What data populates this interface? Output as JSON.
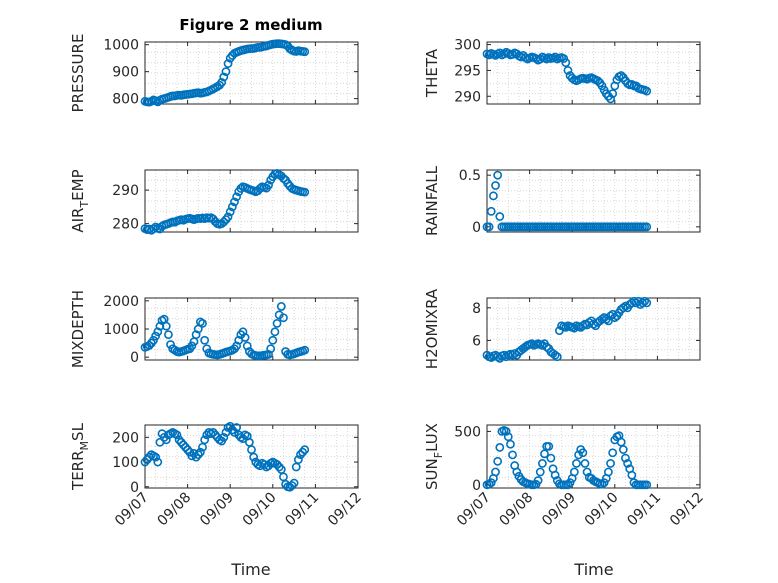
{
  "figure": {
    "title": "Figure 2 medium",
    "marker_color": "#0072BD",
    "x_tick_labels": [
      "09/07",
      "09/08",
      "09/09",
      "09/10",
      "09/11",
      "09/12"
    ],
    "x_label": "Time"
  },
  "chart_data": [
    {
      "type": "scatter",
      "title": "Figure 2 medium",
      "ylabel": "PRESSURE",
      "ylim": [
        780,
        1010
      ],
      "yticks": [
        800,
        900,
        1000
      ],
      "xlim": [
        0,
        5
      ],
      "grid": true,
      "x": [
        0.0,
        0.05,
        0.1,
        0.15,
        0.2,
        0.25,
        0.3,
        0.35,
        0.4,
        0.45,
        0.5,
        0.55,
        0.6,
        0.65,
        0.7,
        0.75,
        0.8,
        0.85,
        0.9,
        0.95,
        1.0,
        1.05,
        1.1,
        1.15,
        1.2,
        1.25,
        1.3,
        1.35,
        1.4,
        1.45,
        1.5,
        1.55,
        1.6,
        1.65,
        1.7,
        1.75,
        1.8,
        1.85,
        1.9,
        1.95,
        2.0,
        2.05,
        2.1,
        2.15,
        2.2,
        2.25,
        2.3,
        2.35,
        2.4,
        2.45,
        2.5,
        2.55,
        2.6,
        2.65,
        2.7,
        2.75,
        2.8,
        2.85,
        2.9,
        2.95,
        3.0,
        3.05,
        3.1,
        3.15,
        3.2,
        3.25,
        3.3,
        3.35,
        3.4,
        3.45,
        3.5,
        3.55,
        3.6,
        3.65,
        3.7,
        3.75
      ],
      "y": [
        790,
        788,
        787,
        790,
        795,
        792,
        788,
        794,
        798,
        800,
        802,
        805,
        808,
        810,
        810,
        812,
        813,
        812,
        814,
        815,
        816,
        817,
        818,
        820,
        821,
        822,
        820,
        821,
        823,
        825,
        828,
        832,
        836,
        840,
        845,
        850,
        860,
        880,
        900,
        930,
        950,
        960,
        968,
        972,
        975,
        978,
        980,
        982,
        984,
        985,
        986,
        986,
        988,
        990,
        990,
        992,
        994,
        995,
        998,
        1000,
        1002,
        1003,
        1004,
        1004,
        1003,
        1002,
        1000,
        995,
        985,
        980,
        976,
        975,
        978,
        976,
        975,
        974
      ]
    },
    {
      "type": "scatter",
      "ylabel": "THETA",
      "ylim": [
        288.5,
        300.5
      ],
      "yticks": [
        290,
        295,
        300
      ],
      "xlim": [
        0,
        5
      ],
      "grid": true,
      "x": [
        0.0,
        0.05,
        0.1,
        0.15,
        0.2,
        0.25,
        0.3,
        0.35,
        0.4,
        0.45,
        0.5,
        0.55,
        0.6,
        0.65,
        0.7,
        0.75,
        0.8,
        0.85,
        0.9,
        0.95,
        1.0,
        1.05,
        1.1,
        1.15,
        1.2,
        1.25,
        1.3,
        1.35,
        1.4,
        1.45,
        1.5,
        1.55,
        1.6,
        1.65,
        1.7,
        1.75,
        1.8,
        1.85,
        1.9,
        1.95,
        2.0,
        2.05,
        2.1,
        2.15,
        2.2,
        2.25,
        2.3,
        2.35,
        2.4,
        2.45,
        2.5,
        2.55,
        2.6,
        2.65,
        2.7,
        2.75,
        2.8,
        2.85,
        2.9,
        2.95,
        3.0,
        3.05,
        3.1,
        3.15,
        3.2,
        3.25,
        3.3,
        3.35,
        3.4,
        3.45,
        3.5,
        3.55,
        3.6,
        3.65,
        3.7,
        3.75
      ],
      "y": [
        298.2,
        298.0,
        298.3,
        298.1,
        297.9,
        298.2,
        298.4,
        298.0,
        298.2,
        298.5,
        298.3,
        298.0,
        298.1,
        298.4,
        298.2,
        297.8,
        297.6,
        297.9,
        297.5,
        297.2,
        297.4,
        297.6,
        297.5,
        297.3,
        297.0,
        297.2,
        297.6,
        297.4,
        297.2,
        297.5,
        297.3,
        297.4,
        297.6,
        297.2,
        297.4,
        297.5,
        297.3,
        296.5,
        295.0,
        294.0,
        293.5,
        293.2,
        293.0,
        293.2,
        293.4,
        293.5,
        293.4,
        293.3,
        293.5,
        293.6,
        293.4,
        293.2,
        293.0,
        292.6,
        292.0,
        291.2,
        290.5,
        290.0,
        289.5,
        290.5,
        292.0,
        293.2,
        293.8,
        294.0,
        293.6,
        293.0,
        292.5,
        292.2,
        292.3,
        292.0,
        292.0,
        291.6,
        291.4,
        291.3,
        291.2,
        291.0
      ]
    },
    {
      "type": "scatter",
      "ylabel": "AIR_TEMP",
      "ylim": [
        277.5,
        296
      ],
      "yticks": [
        280,
        290
      ],
      "xlim": [
        0,
        5
      ],
      "grid": true,
      "x": [
        0.0,
        0.05,
        0.1,
        0.15,
        0.2,
        0.25,
        0.3,
        0.35,
        0.4,
        0.45,
        0.5,
        0.55,
        0.6,
        0.65,
        0.7,
        0.75,
        0.8,
        0.85,
        0.9,
        0.95,
        1.0,
        1.05,
        1.1,
        1.15,
        1.2,
        1.25,
        1.3,
        1.35,
        1.4,
        1.45,
        1.5,
        1.55,
        1.6,
        1.65,
        1.7,
        1.75,
        1.8,
        1.85,
        1.9,
        1.95,
        2.0,
        2.05,
        2.1,
        2.15,
        2.2,
        2.25,
        2.3,
        2.35,
        2.4,
        2.45,
        2.5,
        2.55,
        2.6,
        2.65,
        2.7,
        2.75,
        2.8,
        2.85,
        2.9,
        2.95,
        3.0,
        3.05,
        3.1,
        3.15,
        3.2,
        3.25,
        3.3,
        3.35,
        3.4,
        3.45,
        3.5,
        3.55,
        3.6,
        3.65,
        3.7,
        3.75
      ],
      "y": [
        278.5,
        278.2,
        278.4,
        278.0,
        278.5,
        279.0,
        278.6,
        278.4,
        279.2,
        279.6,
        279.8,
        280.0,
        280.3,
        280.5,
        280.4,
        280.8,
        281.0,
        281.2,
        281.0,
        281.3,
        281.5,
        281.6,
        281.4,
        281.2,
        281.4,
        281.6,
        281.5,
        281.7,
        281.5,
        281.8,
        281.6,
        281.8,
        281.4,
        280.6,
        280.0,
        279.8,
        280.0,
        280.5,
        281.2,
        282.0,
        283.5,
        285.0,
        286.5,
        288.0,
        289.5,
        290.5,
        291.0,
        290.8,
        290.5,
        290.2,
        290.0,
        289.8,
        289.5,
        289.8,
        290.5,
        291.0,
        290.8,
        290.6,
        291.5,
        293.0,
        294.0,
        294.8,
        295.0,
        294.6,
        294.2,
        293.5,
        293.0,
        292.0,
        291.2,
        290.5,
        290.2,
        290.0,
        289.8,
        289.6,
        289.5,
        289.4
      ]
    },
    {
      "type": "scatter",
      "ylabel": "RAINFALL",
      "ylim": [
        -0.05,
        0.55
      ],
      "yticks": [
        0,
        0.5
      ],
      "xlim": [
        0,
        5
      ],
      "grid": true,
      "x": [
        0.0,
        0.05,
        0.1,
        0.15,
        0.2,
        0.25,
        0.3,
        0.35,
        0.4,
        0.45,
        0.5,
        0.55,
        0.6,
        0.65,
        0.7,
        0.75,
        0.8,
        0.85,
        0.9,
        0.95,
        1.0,
        1.05,
        1.1,
        1.15,
        1.2,
        1.25,
        1.3,
        1.35,
        1.4,
        1.45,
        1.5,
        1.55,
        1.6,
        1.65,
        1.7,
        1.75,
        1.8,
        1.85,
        1.9,
        1.95,
        2.0,
        2.05,
        2.1,
        2.15,
        2.2,
        2.25,
        2.3,
        2.35,
        2.4,
        2.45,
        2.5,
        2.55,
        2.6,
        2.65,
        2.7,
        2.75,
        2.8,
        2.85,
        2.9,
        2.95,
        3.0,
        3.05,
        3.1,
        3.15,
        3.2,
        3.25,
        3.3,
        3.35,
        3.4,
        3.45,
        3.5,
        3.55,
        3.6,
        3.65,
        3.7,
        3.75
      ],
      "y": [
        0,
        0,
        0.15,
        0.3,
        0.4,
        0.5,
        0.1,
        0,
        0,
        0,
        0,
        0,
        0,
        0,
        0,
        0,
        0,
        0,
        0,
        0,
        0,
        0,
        0,
        0,
        0,
        0,
        0,
        0,
        0,
        0,
        0,
        0,
        0,
        0,
        0,
        0,
        0,
        0,
        0,
        0,
        0,
        0,
        0,
        0,
        0,
        0,
        0,
        0,
        0,
        0,
        0,
        0,
        0,
        0,
        0,
        0,
        0,
        0,
        0,
        0,
        0,
        0,
        0,
        0,
        0,
        0,
        0,
        0,
        0,
        0,
        0,
        0,
        0,
        0,
        0,
        0
      ]
    },
    {
      "type": "scatter",
      "ylabel": "MIXDEPTH",
      "ylim": [
        -100,
        2100
      ],
      "yticks": [
        0,
        1000,
        2000
      ],
      "xlim": [
        0,
        5
      ],
      "grid": true,
      "x": [
        0.0,
        0.05,
        0.1,
        0.15,
        0.2,
        0.25,
        0.3,
        0.35,
        0.4,
        0.45,
        0.5,
        0.55,
        0.6,
        0.65,
        0.7,
        0.75,
        0.8,
        0.85,
        0.9,
        0.95,
        1.0,
        1.05,
        1.1,
        1.15,
        1.2,
        1.25,
        1.3,
        1.35,
        1.4,
        1.45,
        1.5,
        1.55,
        1.6,
        1.65,
        1.7,
        1.75,
        1.8,
        1.85,
        1.9,
        1.95,
        2.0,
        2.05,
        2.1,
        2.15,
        2.2,
        2.25,
        2.3,
        2.35,
        2.4,
        2.45,
        2.5,
        2.55,
        2.6,
        2.65,
        2.7,
        2.75,
        2.8,
        2.85,
        2.9,
        2.95,
        3.0,
        3.05,
        3.1,
        3.15,
        3.2,
        3.25,
        3.3,
        3.35,
        3.4,
        3.45,
        3.5,
        3.55,
        3.6,
        3.65,
        3.7,
        3.75
      ],
      "y": [
        350,
        380,
        420,
        500,
        600,
        750,
        900,
        1100,
        1300,
        1350,
        1100,
        800,
        450,
        300,
        250,
        200,
        180,
        200,
        220,
        250,
        280,
        300,
        400,
        550,
        800,
        1000,
        1250,
        1200,
        600,
        300,
        150,
        120,
        100,
        90,
        80,
        100,
        120,
        150,
        180,
        200,
        220,
        250,
        300,
        400,
        600,
        800,
        900,
        700,
        400,
        200,
        120,
        80,
        60,
        50,
        50,
        60,
        70,
        80,
        100,
        300,
        600,
        900,
        1200,
        1500,
        1800,
        1400,
        200,
        100,
        80,
        100,
        120,
        150,
        180,
        200,
        220,
        250
      ]
    },
    {
      "type": "scatter",
      "ylabel": "H2OMIXRA",
      "ylim": [
        4.8,
        8.6
      ],
      "yticks": [
        6,
        8
      ],
      "xlim": [
        0,
        5
      ],
      "grid": true,
      "x": [
        0.0,
        0.05,
        0.1,
        0.15,
        0.2,
        0.25,
        0.3,
        0.35,
        0.4,
        0.45,
        0.5,
        0.55,
        0.6,
        0.65,
        0.7,
        0.75,
        0.8,
        0.85,
        0.9,
        0.95,
        1.0,
        1.05,
        1.1,
        1.15,
        1.2,
        1.25,
        1.3,
        1.35,
        1.4,
        1.45,
        1.5,
        1.55,
        1.6,
        1.65,
        1.7,
        1.75,
        1.8,
        1.85,
        1.9,
        1.95,
        2.0,
        2.05,
        2.1,
        2.15,
        2.2,
        2.25,
        2.3,
        2.35,
        2.4,
        2.45,
        2.5,
        2.55,
        2.6,
        2.65,
        2.7,
        2.75,
        2.8,
        2.85,
        2.9,
        2.95,
        3.0,
        3.05,
        3.1,
        3.15,
        3.2,
        3.25,
        3.3,
        3.35,
        3.4,
        3.45,
        3.5,
        3.55,
        3.6,
        3.65,
        3.7,
        3.75
      ],
      "y": [
        5.1,
        5.0,
        4.95,
        5.05,
        5.1,
        5.0,
        4.9,
        5.05,
        5.1,
        5.0,
        5.1,
        5.15,
        5.1,
        5.2,
        5.1,
        5.3,
        5.4,
        5.5,
        5.6,
        5.7,
        5.75,
        5.8,
        5.7,
        5.75,
        5.8,
        5.75,
        5.7,
        5.8,
        5.6,
        5.5,
        5.3,
        5.2,
        5.1,
        5.0,
        6.6,
        6.9,
        6.85,
        6.8,
        6.9,
        6.85,
        6.8,
        6.75,
        6.9,
        6.85,
        6.8,
        6.9,
        7.0,
        6.95,
        7.1,
        7.2,
        7.0,
        6.9,
        7.1,
        7.2,
        7.3,
        7.4,
        7.3,
        7.2,
        7.5,
        7.6,
        7.4,
        7.5,
        7.7,
        7.9,
        8.0,
        8.1,
        8.0,
        8.2,
        8.3,
        8.4,
        8.3,
        8.4,
        8.2,
        8.3,
        8.4,
        8.3
      ]
    },
    {
      "type": "scatter",
      "ylabel": "TERR_MSL",
      "ylim": [
        -5,
        250
      ],
      "yticks": [
        0,
        100,
        200
      ],
      "xlim": [
        0,
        5
      ],
      "grid": true,
      "x": [
        0.0,
        0.05,
        0.1,
        0.15,
        0.2,
        0.25,
        0.3,
        0.35,
        0.4,
        0.45,
        0.5,
        0.55,
        0.6,
        0.65,
        0.7,
        0.75,
        0.8,
        0.85,
        0.9,
        0.95,
        1.0,
        1.05,
        1.1,
        1.15,
        1.2,
        1.25,
        1.3,
        1.35,
        1.4,
        1.45,
        1.5,
        1.55,
        1.6,
        1.65,
        1.7,
        1.75,
        1.8,
        1.85,
        1.9,
        1.95,
        2.0,
        2.05,
        2.1,
        2.15,
        2.2,
        2.25,
        2.3,
        2.35,
        2.4,
        2.45,
        2.5,
        2.55,
        2.6,
        2.65,
        2.7,
        2.75,
        2.8,
        2.85,
        2.9,
        2.95,
        3.0,
        3.05,
        3.1,
        3.15,
        3.2,
        3.25,
        3.3,
        3.35,
        3.4,
        3.45,
        3.5,
        3.55,
        3.6,
        3.65,
        3.7,
        3.75
      ],
      "y": [
        100,
        110,
        120,
        130,
        125,
        120,
        100,
        180,
        215,
        200,
        190,
        210,
        215,
        220,
        215,
        210,
        190,
        180,
        170,
        160,
        150,
        140,
        125,
        135,
        120,
        130,
        140,
        160,
        190,
        210,
        220,
        215,
        220,
        210,
        200,
        190,
        185,
        200,
        220,
        240,
        245,
        230,
        220,
        240,
        210,
        200,
        195,
        210,
        205,
        180,
        150,
        120,
        100,
        90,
        85,
        95,
        90,
        80,
        85,
        95,
        100,
        95,
        90,
        80,
        70,
        40,
        10,
        0,
        -2,
        5,
        15,
        80,
        110,
        130,
        140,
        150
      ]
    },
    {
      "type": "scatter",
      "ylabel": "SUN_FLUX",
      "ylim": [
        -30,
        560
      ],
      "yticks": [
        0,
        500
      ],
      "xlim": [
        0,
        5
      ],
      "grid": true,
      "x": [
        0.0,
        0.05,
        0.1,
        0.15,
        0.2,
        0.25,
        0.3,
        0.35,
        0.4,
        0.45,
        0.5,
        0.55,
        0.6,
        0.65,
        0.7,
        0.75,
        0.8,
        0.85,
        0.9,
        0.95,
        1.0,
        1.05,
        1.1,
        1.15,
        1.2,
        1.25,
        1.3,
        1.35,
        1.4,
        1.45,
        1.5,
        1.55,
        1.6,
        1.65,
        1.7,
        1.75,
        1.8,
        1.85,
        1.9,
        1.95,
        2.0,
        2.05,
        2.1,
        2.15,
        2.2,
        2.25,
        2.3,
        2.35,
        2.4,
        2.45,
        2.5,
        2.55,
        2.6,
        2.65,
        2.7,
        2.75,
        2.8,
        2.85,
        2.9,
        2.95,
        3.0,
        3.05,
        3.1,
        3.15,
        3.2,
        3.25,
        3.3,
        3.35,
        3.4,
        3.45,
        3.5,
        3.55,
        3.6,
        3.65,
        3.7,
        3.75
      ],
      "y": [
        0,
        5,
        20,
        60,
        120,
        220,
        350,
        500,
        510,
        500,
        450,
        380,
        280,
        180,
        120,
        80,
        50,
        30,
        20,
        10,
        5,
        0,
        0,
        5,
        40,
        120,
        200,
        290,
        360,
        360,
        250,
        150,
        90,
        40,
        10,
        0,
        0,
        0,
        0,
        20,
        60,
        120,
        200,
        280,
        330,
        300,
        200,
        120,
        70,
        60,
        40,
        30,
        20,
        10,
        5,
        20,
        60,
        120,
        200,
        300,
        420,
        450,
        460,
        400,
        330,
        250,
        200,
        150,
        90,
        20,
        0,
        0,
        0,
        0,
        0,
        0
      ]
    }
  ]
}
